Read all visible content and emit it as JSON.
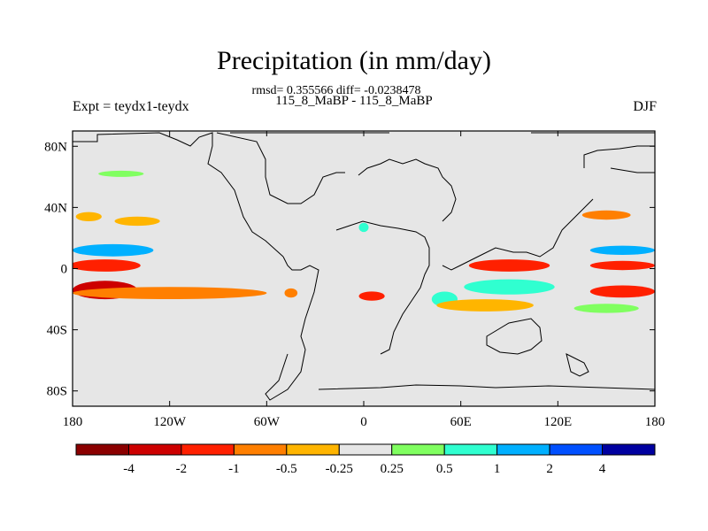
{
  "chart_data": {
    "type": "heatmap",
    "title": "Precipitation (in mm/day)",
    "stats": "rmsd= 0.355566 diff= -0.0238478",
    "subtitle": "115_8_MaBP - 115_8_MaBP",
    "left_label": "Expt = teydx1-teydx",
    "right_label": "DJF",
    "x_range": [
      -180,
      180
    ],
    "y_range": [
      -90,
      90
    ],
    "x_ticks": [
      {
        "value": -180,
        "label": "180"
      },
      {
        "value": -120,
        "label": "120W"
      },
      {
        "value": -60,
        "label": "60W"
      },
      {
        "value": 0,
        "label": "0"
      },
      {
        "value": 60,
        "label": "60E"
      },
      {
        "value": 120,
        "label": "120E"
      },
      {
        "value": 180,
        "label": "180"
      }
    ],
    "y_ticks": [
      {
        "value": 80,
        "label": "80N"
      },
      {
        "value": 40,
        "label": "40N"
      },
      {
        "value": 0,
        "label": "0"
      },
      {
        "value": -40,
        "label": "40S"
      },
      {
        "value": -80,
        "label": "80S"
      }
    ],
    "colorbar": {
      "colors": [
        "#8b0000",
        "#cd0000",
        "#ff2000",
        "#ff7f00",
        "#ffb500",
        "#e6e6e6",
        "#80ff60",
        "#30ffd0",
        "#00b0ff",
        "#0050ff",
        "#0000a0"
      ],
      "levels": [
        "-4",
        "-2",
        "-1",
        "-0.5",
        "-0.25",
        "0.25",
        "0.5",
        "1",
        "2",
        "4"
      ]
    },
    "features": [
      {
        "lon": -160,
        "lat": 2,
        "rlon": 22,
        "rlat": 4,
        "value": -1.2
      },
      {
        "lon": -155,
        "lat": 12,
        "rlon": 25,
        "rlat": 4,
        "value": 1.5
      },
      {
        "lon": -160,
        "lat": -14,
        "rlon": 20,
        "rlat": 6,
        "value": -2.5
      },
      {
        "lon": -120,
        "lat": -16,
        "rlon": 60,
        "rlat": 4,
        "value": -0.8
      },
      {
        "lon": -140,
        "lat": 31,
        "rlon": 14,
        "rlat": 3,
        "value": -0.35
      },
      {
        "lon": -170,
        "lat": 34,
        "rlon": 8,
        "rlat": 3,
        "value": -0.35
      },
      {
        "lon": -150,
        "lat": 62,
        "rlon": 14,
        "rlat": 2,
        "value": 0.35
      },
      {
        "lon": -45,
        "lat": -16,
        "rlon": 4,
        "rlat": 3,
        "value": -0.7
      },
      {
        "lon": 5,
        "lat": -18,
        "rlon": 8,
        "rlat": 3,
        "value": -1.2
      },
      {
        "lon": 50,
        "lat": -20,
        "rlon": 8,
        "rlat": 5,
        "value": 0.7
      },
      {
        "lon": 90,
        "lat": 2,
        "rlon": 25,
        "rlat": 4,
        "value": -1.2
      },
      {
        "lon": 90,
        "lat": -12,
        "rlon": 28,
        "rlat": 5,
        "value": 0.7
      },
      {
        "lon": 75,
        "lat": -24,
        "rlon": 30,
        "rlat": 4,
        "value": -0.4
      },
      {
        "lon": 150,
        "lat": 35,
        "rlon": 15,
        "rlat": 3,
        "value": -0.7
      },
      {
        "lon": 160,
        "lat": 12,
        "rlon": 20,
        "rlat": 3,
        "value": 1.5
      },
      {
        "lon": 160,
        "lat": 2,
        "rlon": 20,
        "rlat": 3,
        "value": -1.2
      },
      {
        "lon": 160,
        "lat": -15,
        "rlon": 20,
        "rlat": 4,
        "value": -1.5
      },
      {
        "lon": 150,
        "lat": -26,
        "rlon": 20,
        "rlat": 3,
        "value": 0.35
      },
      {
        "lon": 0,
        "lat": 27,
        "rlon": 3,
        "rlat": 3,
        "value": 0.7
      }
    ]
  }
}
